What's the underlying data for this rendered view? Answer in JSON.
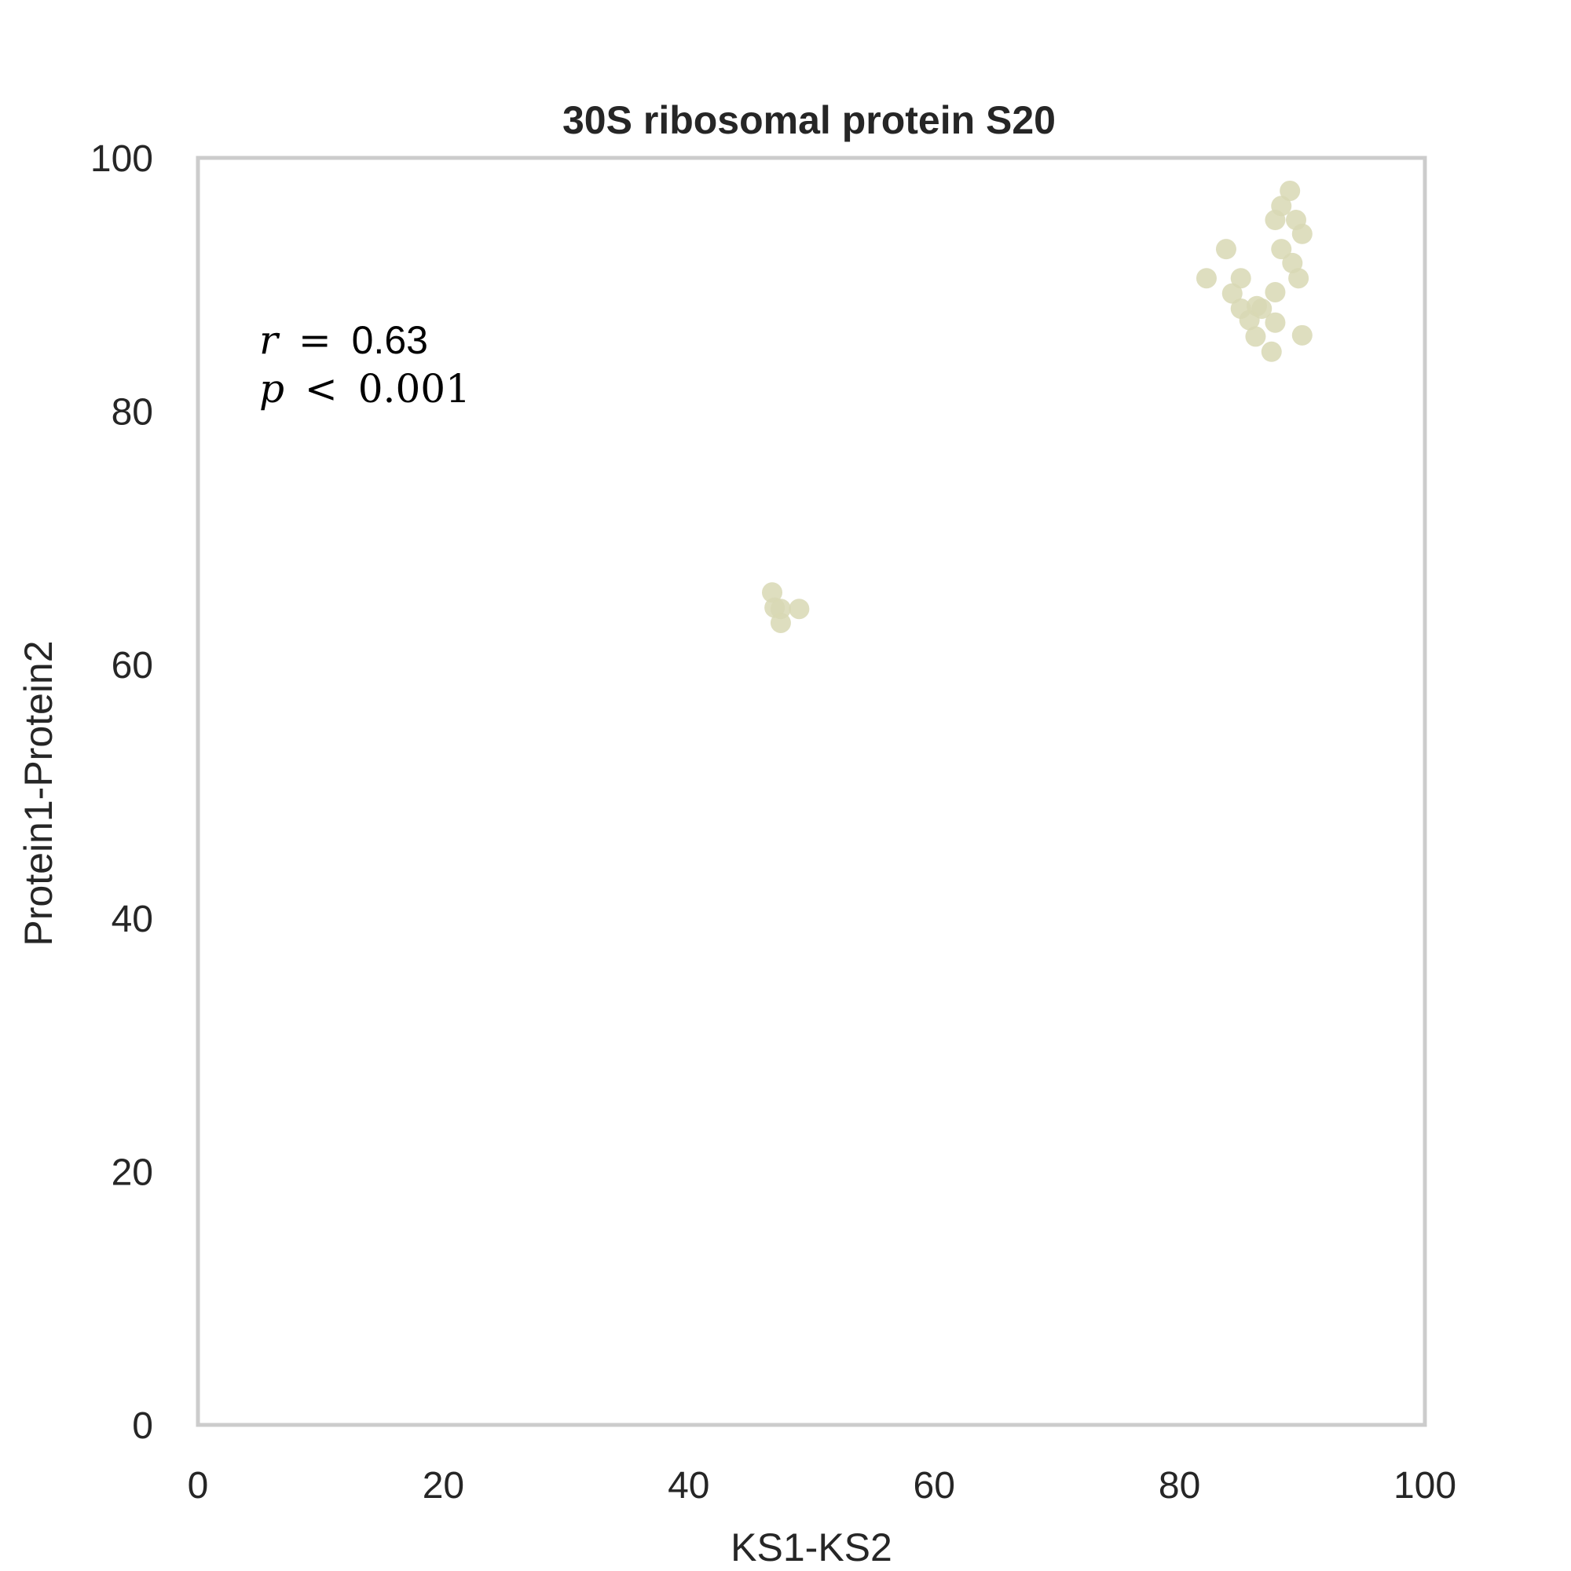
{
  "chart_data": {
    "type": "scatter",
    "title": "30S ribosomal protein S20",
    "xlabel": "KS1-KS2",
    "ylabel": "Protein1-Protein2",
    "xlim": [
      0,
      100
    ],
    "ylim": [
      0,
      100
    ],
    "xticks": [
      "0",
      "20",
      "40",
      "60",
      "80",
      "100"
    ],
    "yticks": [
      "0",
      "20",
      "40",
      "60",
      "80",
      "100"
    ],
    "grid": false,
    "marker_color": "#d8d8b4",
    "annotation": {
      "r_symbol": "r",
      "equals": "=",
      "r_value": "0.63",
      "p_symbol": "p",
      "less": "<",
      "p_value": "0.001"
    },
    "points": [
      {
        "x": 46.8,
        "y": 65.7
      },
      {
        "x": 47.0,
        "y": 64.5
      },
      {
        "x": 47.5,
        "y": 64.4
      },
      {
        "x": 47.5,
        "y": 63.3
      },
      {
        "x": 49.0,
        "y": 64.4
      },
      {
        "x": 82.2,
        "y": 90.5
      },
      {
        "x": 83.8,
        "y": 92.8
      },
      {
        "x": 84.3,
        "y": 89.3
      },
      {
        "x": 85.0,
        "y": 90.5
      },
      {
        "x": 85.0,
        "y": 88.1
      },
      {
        "x": 85.7,
        "y": 87.2
      },
      {
        "x": 86.2,
        "y": 85.9
      },
      {
        "x": 86.3,
        "y": 88.3
      },
      {
        "x": 86.7,
        "y": 88.1
      },
      {
        "x": 87.5,
        "y": 84.7
      },
      {
        "x": 87.8,
        "y": 89.4
      },
      {
        "x": 87.8,
        "y": 87.0
      },
      {
        "x": 87.8,
        "y": 95.1
      },
      {
        "x": 88.3,
        "y": 96.2
      },
      {
        "x": 88.3,
        "y": 92.8
      },
      {
        "x": 89.0,
        "y": 97.4
      },
      {
        "x": 89.2,
        "y": 91.7
      },
      {
        "x": 89.5,
        "y": 95.1
      },
      {
        "x": 89.7,
        "y": 90.5
      },
      {
        "x": 90.0,
        "y": 94.0
      },
      {
        "x": 90.0,
        "y": 86.0
      }
    ]
  }
}
